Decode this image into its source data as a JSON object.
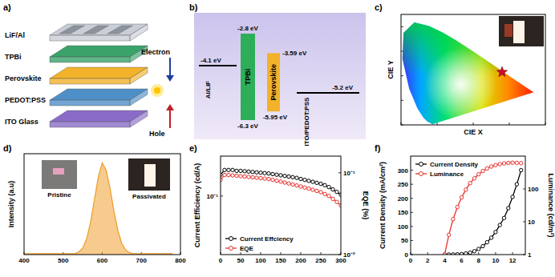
{
  "panel_labels": [
    "a)",
    "b)",
    "c)",
    "d)",
    "e)",
    "f)"
  ],
  "device_stack": {
    "layers": [
      "LiF/Al",
      "TPBi",
      "Perovskite",
      "PEDOT:PSS",
      "ITO Glass"
    ],
    "electron_label": "Electron",
    "hole_label": "Hole"
  },
  "energy_diagram": {
    "levels": [
      {
        "name": "Al/LiF",
        "value": -4.1,
        "label": "-4.1 eV"
      },
      {
        "name": "ITO/PEDOT:PSS",
        "value": -5.2,
        "label": "-5.2 eV"
      }
    ],
    "bands": [
      {
        "name": "TPBi",
        "lumo": {
          "value": -2.8,
          "label": "-2.8 eV"
        },
        "homo": {
          "value": -6.3,
          "label": "-6.3 eV"
        }
      },
      {
        "name": "Perovskite",
        "lumo": {
          "value": -3.59,
          "label": "-3.59 eV"
        },
        "homo": {
          "value": -5.95,
          "label": "-5.95 eV"
        }
      }
    ]
  },
  "chart_data": [
    {
      "type": "scatter",
      "xlabel": "CIE X",
      "ylabel": "CIE Y",
      "xlim": [
        0,
        0.8
      ],
      "ylim": [
        0,
        0.9
      ],
      "xticks": [
        0,
        0.2,
        0.4,
        0.6,
        0.8
      ],
      "yticks": [
        0,
        0.2,
        0.4,
        0.6,
        0.8
      ],
      "tick_labels": false,
      "locus": {
        "x": [
          0.1741,
          0.144,
          0.124,
          0.091,
          0.045,
          0.008,
          0.014,
          0.074,
          0.155,
          0.23,
          0.302,
          0.373,
          0.444,
          0.512,
          0.575,
          0.627,
          0.691,
          0.735
        ],
        "y": [
          0.005,
          0.03,
          0.058,
          0.133,
          0.295,
          0.538,
          0.75,
          0.834,
          0.806,
          0.754,
          0.692,
          0.624,
          0.555,
          0.487,
          0.424,
          0.372,
          0.308,
          0.265
        ]
      },
      "series": [
        {
          "x": [
            0.56
          ],
          "values": [
            0.43
          ],
          "color": "#c8102e",
          "marker": "star"
        }
      ]
    },
    {
      "type": "area",
      "ylabel": "Intensity (a.u)",
      "xlim": [
        400,
        800
      ],
      "ylim": [
        0,
        1.1
      ],
      "xticks": [
        400,
        500,
        600,
        700,
        800
      ],
      "tick_labels": "x",
      "annotations": [
        "Pristine",
        "Passivated"
      ],
      "x": [
        400,
        410,
        420,
        430,
        440,
        450,
        460,
        470,
        480,
        490,
        500,
        510,
        520,
        530,
        540,
        550,
        560,
        570,
        580,
        590,
        600,
        610,
        620,
        630,
        640,
        650,
        660,
        670,
        680,
        690,
        700,
        710,
        720,
        730,
        740,
        750,
        760,
        770,
        780
      ],
      "series": [
        {
          "color": "#f0a030",
          "values": [
            0.01,
            0.01,
            0.01,
            0.01,
            0.01,
            0.01,
            0.01,
            0.01,
            0.01,
            0.01,
            0.01,
            0.01,
            0.01,
            0.01,
            0.03,
            0.07,
            0.17,
            0.35,
            0.6,
            0.85,
            1.0,
            0.92,
            0.72,
            0.47,
            0.26,
            0.12,
            0.05,
            0.02,
            0.01,
            0.01,
            0.01,
            0.01,
            0.01,
            0.01,
            0.01,
            0.01,
            0.01,
            0.01,
            0.01
          ]
        }
      ]
    },
    {
      "type": "line",
      "ylabel": "Current Efficiency (cd/A)",
      "y2label": "EQE (%)",
      "log": "y",
      "legend": "lower left",
      "xlim": [
        0,
        300
      ],
      "xticks": [
        0,
        50,
        100,
        150,
        200,
        250,
        300
      ],
      "ylim": [
        0.02,
        0.3
      ],
      "yticks": [
        {
          "value": 0.1,
          "label": "10⁻¹"
        }
      ],
      "y2lim": [
        0.01,
        0.16
      ],
      "y2ticks": [
        {
          "value": 0.01,
          "label": "10⁻²"
        },
        {
          "value": 0.1,
          "label": "10⁻¹"
        }
      ],
      "x": [
        0,
        10,
        20,
        30,
        40,
        50,
        60,
        70,
        80,
        90,
        100,
        110,
        120,
        130,
        140,
        150,
        160,
        170,
        180,
        190,
        200,
        210,
        220,
        230,
        240,
        250,
        260,
        270,
        280,
        290,
        300
      ],
      "series": [
        {
          "name": "Current Effciency",
          "color": "#000000",
          "marker": "circle",
          "values": [
            0.18,
            0.205,
            0.205,
            0.205,
            0.2,
            0.2,
            0.198,
            0.196,
            0.194,
            0.192,
            0.19,
            0.188,
            0.186,
            0.183,
            0.18,
            0.177,
            0.174,
            0.171,
            0.168,
            0.165,
            0.16,
            0.156,
            0.152,
            0.148,
            0.144,
            0.14,
            0.135,
            0.128,
            0.12,
            0.112,
            0.104
          ]
        },
        {
          "name": "EQE",
          "color": "#e8322e",
          "marker": "circle",
          "axis": "y2",
          "values": [
            0.082,
            0.094,
            0.094,
            0.093,
            0.092,
            0.091,
            0.09,
            0.089,
            0.088,
            0.087,
            0.086,
            0.085,
            0.084,
            0.082,
            0.08,
            0.078,
            0.076,
            0.074,
            0.072,
            0.07,
            0.068,
            0.066,
            0.064,
            0.062,
            0.06,
            0.058,
            0.055,
            0.052,
            0.048,
            0.044,
            0.04
          ]
        }
      ]
    },
    {
      "type": "line",
      "ylabel": "Current Density (mA/cm²)",
      "y2label": "Luminance (cd/m²)",
      "log": "y2",
      "legend": "upper left",
      "xlim": [
        0,
        13.5
      ],
      "xticks": [
        0,
        2,
        4,
        6,
        8,
        10,
        12
      ],
      "ylim": [
        0,
        350
      ],
      "yticks": [
        0,
        50,
        100,
        150,
        200,
        250,
        300
      ],
      "y2lim": [
        1,
        1000
      ],
      "y2ticks": [
        1,
        10,
        100
      ],
      "x": [
        4,
        4.5,
        5,
        5.5,
        6,
        6.5,
        7,
        7.5,
        8,
        8.5,
        9,
        9.5,
        10,
        10.5,
        11,
        11.5,
        12,
        12.5,
        13
      ],
      "series": [
        {
          "name": "Current Density",
          "color": "#000000",
          "marker": "circle",
          "values": [
            0,
            0.2,
            0.5,
            1,
            2,
            4,
            7,
            12,
            20,
            30,
            44,
            60,
            80,
            105,
            130,
            165,
            205,
            250,
            300
          ]
        },
        {
          "name": "Luminance",
          "color": "#e8322e",
          "marker": "circle",
          "axis": "y2",
          "values": [
            1,
            4,
            12,
            28,
            55,
            95,
            150,
            210,
            280,
            350,
            420,
            480,
            530,
            570,
            600,
            620,
            630,
            625,
            610
          ]
        }
      ]
    }
  ]
}
